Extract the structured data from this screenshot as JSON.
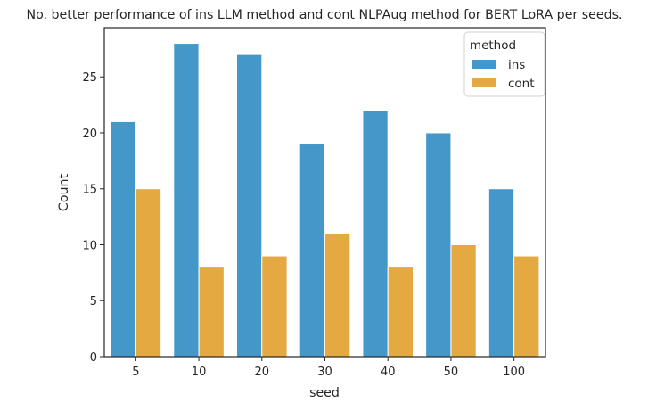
{
  "chart_data": {
    "type": "bar",
    "title": "No. better performance of ins LLM method and cont NLPAug method for BERT LoRA per seeds.",
    "xlabel": "seed",
    "ylabel": "Count",
    "categories": [
      "5",
      "10",
      "20",
      "30",
      "40",
      "50",
      "100"
    ],
    "series": [
      {
        "name": "ins",
        "values": [
          21,
          28,
          27,
          19,
          22,
          20,
          15
        ],
        "color": "#4397c9"
      },
      {
        "name": "cont",
        "values": [
          15,
          8,
          9,
          11,
          8,
          10,
          9
        ],
        "color": "#e5a942"
      }
    ],
    "ylim": [
      0,
      29.4
    ],
    "yticks": [
      0,
      5,
      10,
      15,
      20,
      25
    ],
    "legend": {
      "title": "method",
      "placement": "top-right"
    },
    "grid": false
  }
}
